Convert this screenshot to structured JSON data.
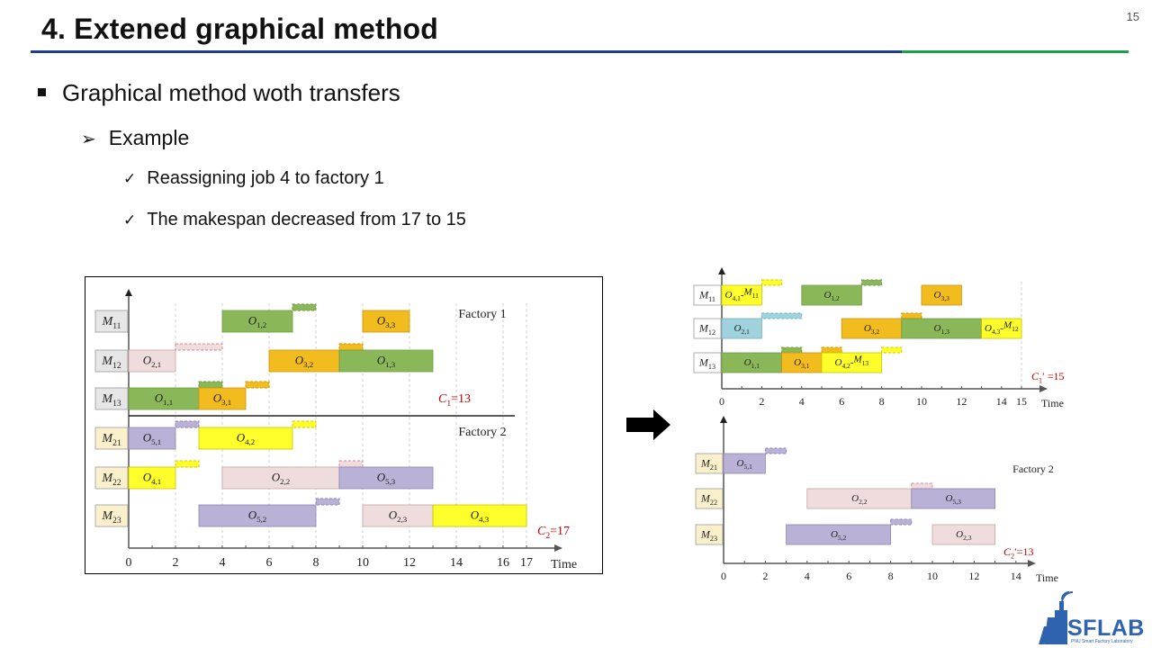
{
  "slide": {
    "title": "4. Extened graphical method",
    "page_number": "15"
  },
  "bullets": {
    "level1": "Graphical method woth transfers",
    "level2": "Example",
    "level3": [
      "Reassigning job 4 to factory 1",
      "The makespan decreased from 17 to 15"
    ]
  },
  "logo": {
    "name": "SFLAB",
    "subtitle": "PNU Smart Factory Laboratory",
    "icon": "factory-signal-icon"
  },
  "colors": {
    "green": "#8ab858",
    "orange": "#f2bb1e",
    "pink": "#efdcdc",
    "purple": "#bab1d6",
    "yellow": "#fefe2a",
    "blue": "#9fd2dc",
    "accent_red": "#c00000",
    "f1_label_bg": "#e6e6e6",
    "f2_label_bg": "#fbf0cc"
  },
  "chart_data": [
    {
      "type": "gantt",
      "title": "",
      "xlabel": "Time",
      "x_ticks": [
        "0",
        "2",
        "4",
        "6",
        "8",
        "10",
        "12",
        "14",
        "16",
        "17"
      ],
      "xlim": [
        0,
        17
      ],
      "factory_labels": [
        "Factory 1",
        "Factory 2"
      ],
      "machines": [
        "M11",
        "M12",
        "M13",
        "M21",
        "M22",
        "M23"
      ],
      "makespans": [
        "C1=13",
        "C2=17"
      ],
      "operations": [
        {
          "machine": "M11",
          "label": "O1,2",
          "start": 4,
          "end": 7,
          "color": "green"
        },
        {
          "machine": "M11",
          "label": "O3,3",
          "start": 10,
          "end": 12,
          "color": "orange"
        },
        {
          "machine": "M12",
          "label": "O2,1",
          "start": 0,
          "end": 2,
          "color": "pink"
        },
        {
          "machine": "M12",
          "label": "O3,2",
          "start": 6,
          "end": 9,
          "color": "orange"
        },
        {
          "machine": "M12",
          "label": "O1,3",
          "start": 9,
          "end": 13,
          "color": "green"
        },
        {
          "machine": "M13",
          "label": "O1,1",
          "start": 0,
          "end": 3,
          "color": "green"
        },
        {
          "machine": "M13",
          "label": "O3,1",
          "start": 3,
          "end": 5,
          "color": "orange"
        },
        {
          "machine": "M21",
          "label": "O5,1",
          "start": 0,
          "end": 2,
          "color": "purple"
        },
        {
          "machine": "M21",
          "label": "O4,2",
          "start": 3,
          "end": 7,
          "color": "yellow"
        },
        {
          "machine": "M22",
          "label": "O4,1",
          "start": 0,
          "end": 2,
          "color": "yellow"
        },
        {
          "machine": "M22",
          "label": "O2,2",
          "start": 4,
          "end": 9,
          "color": "pink"
        },
        {
          "machine": "M22",
          "label": "O5,3",
          "start": 9,
          "end": 13,
          "color": "purple"
        },
        {
          "machine": "M23",
          "label": "O5,2",
          "start": 3,
          "end": 8,
          "color": "purple"
        },
        {
          "machine": "M23",
          "label": "O2,3",
          "start": 10,
          "end": 13,
          "color": "pink"
        },
        {
          "machine": "M23",
          "label": "O4,3",
          "start": 13,
          "end": 17,
          "color": "yellow"
        }
      ],
      "transfers": [
        {
          "machine": "M11",
          "start": 7,
          "end": 8,
          "color": "green"
        },
        {
          "machine": "M12",
          "start": 2,
          "end": 4,
          "color": "pink"
        },
        {
          "machine": "M12",
          "start": 9,
          "end": 10,
          "color": "orange"
        },
        {
          "machine": "M13",
          "start": 3,
          "end": 4,
          "color": "green"
        },
        {
          "machine": "M13",
          "start": 5,
          "end": 6,
          "color": "orange"
        },
        {
          "machine": "M21",
          "start": 2,
          "end": 3,
          "color": "purple"
        },
        {
          "machine": "M21",
          "start": 7,
          "end": 8,
          "color": "yellow"
        },
        {
          "machine": "M22",
          "start": 2,
          "end": 3,
          "color": "yellow"
        },
        {
          "machine": "M22",
          "start": 9,
          "end": 10,
          "color": "pink"
        },
        {
          "machine": "M23",
          "start": 8,
          "end": 9,
          "color": "purple"
        }
      ]
    },
    {
      "type": "gantt",
      "title": "",
      "xlabel": "Time",
      "x_ticks": [
        "0",
        "2",
        "4",
        "6",
        "8",
        "10",
        "12",
        "14",
        "15"
      ],
      "xlim": [
        0,
        15
      ],
      "factory_labels": [],
      "machines": [
        "M11",
        "M12",
        "M13"
      ],
      "makespans": [
        "C1′ =15"
      ],
      "operations": [
        {
          "machine": "M11",
          "label": "O4,1-M11",
          "start": 0,
          "end": 2,
          "color": "yellow"
        },
        {
          "machine": "M11",
          "label": "O1,2",
          "start": 4,
          "end": 7,
          "color": "green"
        },
        {
          "machine": "M11",
          "label": "O3,3",
          "start": 10,
          "end": 12,
          "color": "orange"
        },
        {
          "machine": "M12",
          "label": "O2,1",
          "start": 0,
          "end": 2,
          "color": "blue"
        },
        {
          "machine": "M12",
          "label": "O3,2",
          "start": 6,
          "end": 9,
          "color": "orange"
        },
        {
          "machine": "M12",
          "label": "O1,3",
          "start": 9,
          "end": 13,
          "color": "green"
        },
        {
          "machine": "M12",
          "label": "O4,3-M12",
          "start": 13,
          "end": 15,
          "color": "yellow"
        },
        {
          "machine": "M13",
          "label": "O1,1",
          "start": 0,
          "end": 3,
          "color": "green"
        },
        {
          "machine": "M13",
          "label": "O3,1",
          "start": 3,
          "end": 5,
          "color": "orange"
        },
        {
          "machine": "M13",
          "label": "O4,2-M13",
          "start": 5,
          "end": 8,
          "color": "yellow"
        }
      ],
      "transfers": [
        {
          "machine": "M11",
          "start": 2,
          "end": 3,
          "color": "yellow"
        },
        {
          "machine": "M11",
          "start": 7,
          "end": 8,
          "color": "green"
        },
        {
          "machine": "M12",
          "start": 2,
          "end": 4,
          "color": "blue"
        },
        {
          "machine": "M12",
          "start": 9,
          "end": 10,
          "color": "orange"
        },
        {
          "machine": "M13",
          "start": 3,
          "end": 4,
          "color": "green"
        },
        {
          "machine": "M13",
          "start": 5,
          "end": 6,
          "color": "orange"
        },
        {
          "machine": "M13",
          "start": 8,
          "end": 9,
          "color": "yellow"
        }
      ]
    },
    {
      "type": "gantt",
      "title": "",
      "xlabel": "Time",
      "x_ticks": [
        "0",
        "2",
        "4",
        "6",
        "8",
        "10",
        "12",
        "14"
      ],
      "xlim": [
        0,
        14
      ],
      "factory_labels": [
        "Factory 2"
      ],
      "machines": [
        "M21",
        "M22",
        "M23"
      ],
      "makespans": [
        "C2′=13"
      ],
      "operations": [
        {
          "machine": "M21",
          "label": "O5,1",
          "start": 0,
          "end": 2,
          "color": "purple"
        },
        {
          "machine": "M22",
          "label": "O2,2",
          "start": 4,
          "end": 9,
          "color": "pink"
        },
        {
          "machine": "M22",
          "label": "O5,3",
          "start": 9,
          "end": 13,
          "color": "purple"
        },
        {
          "machine": "M23",
          "label": "O5,2",
          "start": 3,
          "end": 8,
          "color": "purple"
        },
        {
          "machine": "M23",
          "label": "O2,3",
          "start": 10,
          "end": 13,
          "color": "pink"
        }
      ],
      "transfers": [
        {
          "machine": "M21",
          "start": 2,
          "end": 3,
          "color": "purple"
        },
        {
          "machine": "M22",
          "start": 9,
          "end": 10,
          "color": "pink"
        },
        {
          "machine": "M23",
          "start": 8,
          "end": 9,
          "color": "purple"
        }
      ]
    }
  ]
}
